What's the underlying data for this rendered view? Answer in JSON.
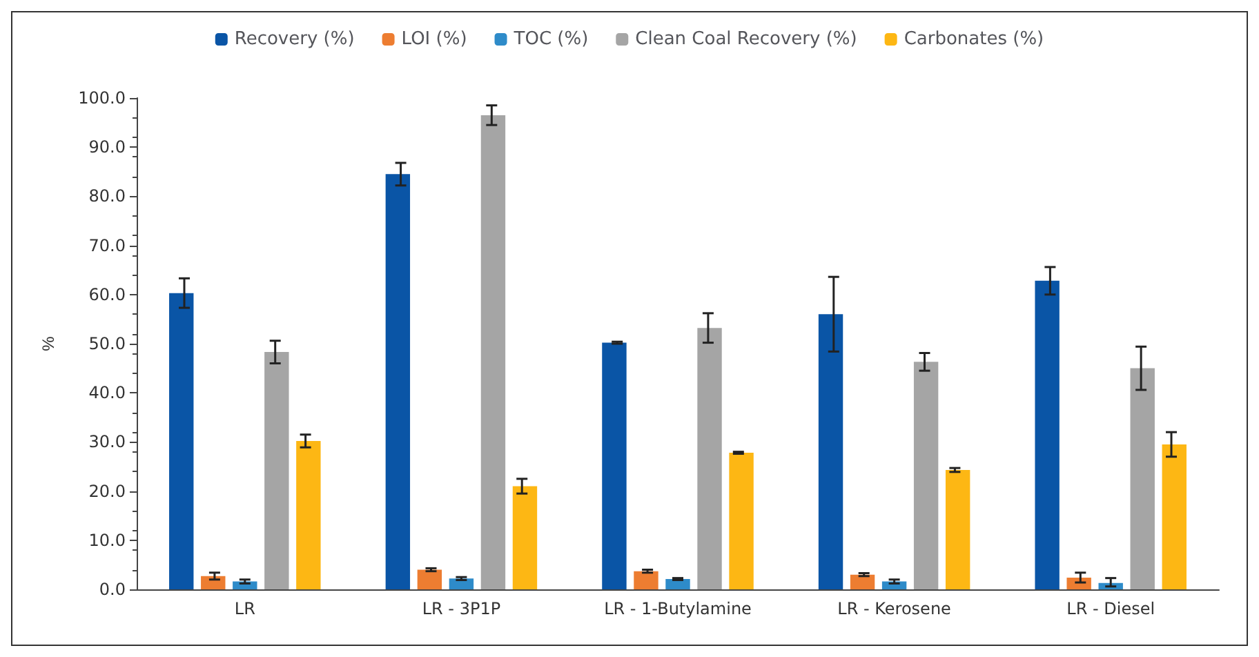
{
  "chart_data": {
    "type": "bar",
    "ylabel": "%",
    "categories": [
      "LR",
      "LR - 3P1P",
      "LR - 1-Butylamine",
      "LR - Kerosene",
      "LR - Diesel"
    ],
    "series": [
      {
        "name": "Recovery (%)",
        "color": "#0a55a6",
        "values": [
          60.3,
          84.5,
          50.2,
          56.0,
          62.8
        ],
        "errors": [
          3.0,
          2.3,
          0.2,
          7.6,
          2.8
        ]
      },
      {
        "name": "LOI (%)",
        "color": "#ed7d31",
        "values": [
          2.7,
          4.0,
          3.7,
          3.0,
          2.4
        ],
        "errors": [
          0.7,
          0.3,
          0.3,
          0.3,
          1.0
        ]
      },
      {
        "name": "TOC (%)",
        "color": "#2e8bc9",
        "values": [
          1.6,
          2.2,
          2.1,
          1.6,
          1.3
        ],
        "errors": [
          0.4,
          0.3,
          0.2,
          0.4,
          [
            0.6,
            2.3
          ]
        ]
      },
      {
        "name": "Clean Coal Recovery (%)",
        "color": "#a5a5a5",
        "values": [
          48.3,
          96.5,
          53.2,
          46.3,
          45.0
        ],
        "errors": [
          2.3,
          2.0,
          3.0,
          1.8,
          4.4
        ]
      },
      {
        "name": "Carbonates (%)",
        "color": "#fdb714",
        "values": [
          30.2,
          21.0,
          27.8,
          24.3,
          29.5
        ],
        "errors": [
          1.3,
          1.5,
          0.2,
          0.4,
          2.5
        ]
      }
    ],
    "ylim": [
      0,
      100
    ],
    "yticks": [
      {
        "value": 0,
        "label": "0.0"
      },
      {
        "value": 10,
        "label": "10.0"
      },
      {
        "value": 20,
        "label": "20.0"
      },
      {
        "value": 30,
        "label": "30.0"
      },
      {
        "value": 40,
        "label": "40.0"
      },
      {
        "value": 50,
        "label": "50.0"
      },
      {
        "value": 60,
        "label": "60.0"
      },
      {
        "value": 70,
        "label": "70.0"
      },
      {
        "value": 80,
        "label": "80.0"
      },
      {
        "value": 90,
        "label": "90.0"
      },
      {
        "value": 100,
        "label": "100.0"
      }
    ],
    "grid": false,
    "legend": "top"
  }
}
